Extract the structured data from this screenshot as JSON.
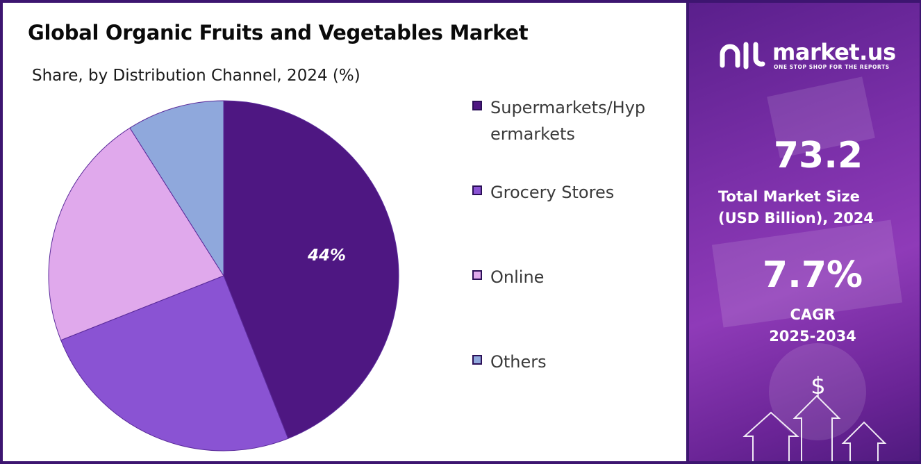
{
  "title": "Global Organic Fruits and Vegetables Market",
  "subtitle": "Share, by Distribution Channel, 2024 (%)",
  "chart_data": {
    "type": "pie",
    "title": "Global Organic Fruits and Vegetables Market",
    "subtitle": "Share, by Distribution Channel, 2024 (%)",
    "categories": [
      "Supermarkets/Hypermarkets",
      "Grocery Stores",
      "Online",
      "Others"
    ],
    "values": [
      44,
      25,
      22,
      9
    ],
    "colors": [
      "#4e1782",
      "#8a53d3",
      "#e0a9ec",
      "#8fa8dc"
    ],
    "data_labels": [
      "44%",
      "",
      "",
      ""
    ],
    "legend_position": "right"
  },
  "legend": {
    "items": [
      {
        "label": "Supermarkets/Hypermarkets",
        "color": "#4e1782"
      },
      {
        "label": "Grocery Stores",
        "color": "#8a53d3"
      },
      {
        "label": "Online",
        "color": "#e0a9ec"
      },
      {
        "label": "Others",
        "color": "#8fa8dc"
      }
    ]
  },
  "sidebar": {
    "logo_text": "market.us",
    "logo_tagline": "ONE STOP SHOP FOR THE REPORTS",
    "market_size_value": "73.2",
    "market_size_label_line1": "Total Market Size",
    "market_size_label_line2": "(USD Billion), 2024",
    "cagr_value": "7.7%",
    "cagr_label_line1": "CAGR",
    "cagr_label_line2": "2025-2034",
    "dollar_symbol": "$"
  }
}
